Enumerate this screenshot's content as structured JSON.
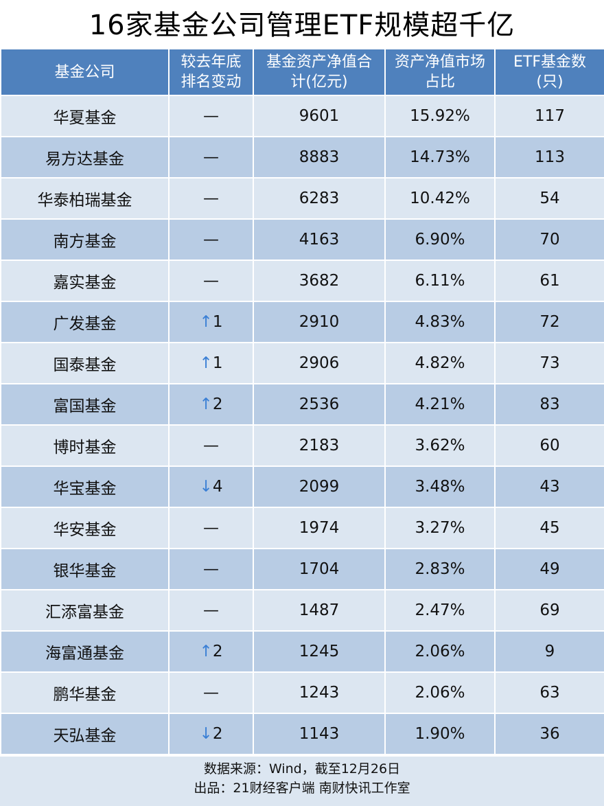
{
  "title": "16家基金公司管理ETF规模超千亿",
  "headers": [
    "基金公司",
    "较去年底\n排名变动",
    "基金资产净值合\n计(亿元)",
    "资产净值市场\n占比",
    "ETF基金数\n(只)"
  ],
  "colors": {
    "header": "#4f81bd",
    "row_light": "#dce6f1",
    "row_dark": "#b8cce4",
    "arrow": "#3a7fd5"
  },
  "rows": [
    [
      "华夏基金",
      "—",
      "9601",
      "15.92%",
      "117"
    ],
    [
      "易方达基金",
      "—",
      "8883",
      "14.73%",
      "113"
    ],
    [
      "华泰柏瑞基金",
      "—",
      "6283",
      "10.42%",
      "54"
    ],
    [
      "南方基金",
      "—",
      "4163",
      "6.90%",
      "70"
    ],
    [
      "嘉实基金",
      "—",
      "3682",
      "6.11%",
      "61"
    ],
    [
      "广发基金",
      "↑1",
      "2910",
      "4.83%",
      "72"
    ],
    [
      "国泰基金",
      "↑1",
      "2906",
      "4.82%",
      "73"
    ],
    [
      "富国基金",
      "↑2",
      "2536",
      "4.21%",
      "83"
    ],
    [
      "博时基金",
      "—",
      "2183",
      "3.62%",
      "60"
    ],
    [
      "华宝基金",
      "↓4",
      "2099",
      "3.48%",
      "43"
    ],
    [
      "华安基金",
      "—",
      "1974",
      "3.27%",
      "45"
    ],
    [
      "银华基金",
      "—",
      "1704",
      "2.83%",
      "49"
    ],
    [
      "汇添富基金",
      "—",
      "1487",
      "2.47%",
      "69"
    ],
    [
      "海富通基金",
      "↑2",
      "1245",
      "2.06%",
      "9"
    ],
    [
      "鹏华基金",
      "—",
      "1243",
      "2.06%",
      "63"
    ],
    [
      "天弘基金",
      "↓2",
      "1143",
      "1.90%",
      "36"
    ]
  ],
  "footer": {
    "source": "数据来源：Wind，截至12月26日",
    "producer": "出品：21财经客户端 南财快讯工作室"
  }
}
